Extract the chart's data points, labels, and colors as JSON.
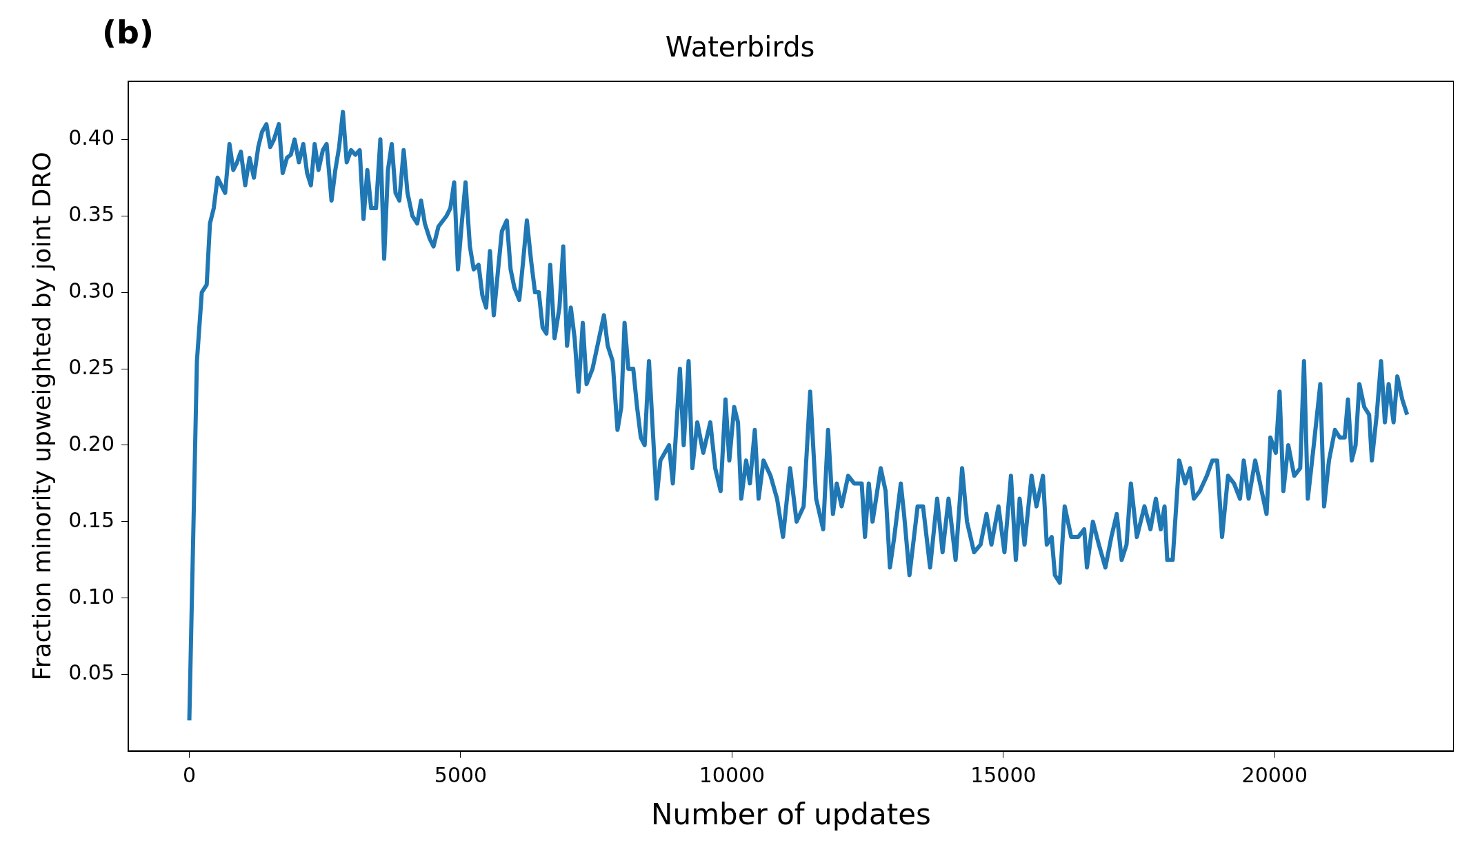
{
  "chart_data": {
    "type": "line",
    "title": "Waterbirds",
    "xlabel": "Number of updates",
    "ylabel": "Fraction minority upweighted by joint DRO",
    "annotations": [
      "(b)"
    ],
    "x": [
      0,
      140,
      230,
      320,
      380,
      450,
      520,
      590,
      660,
      740,
      810,
      880,
      950,
      1030,
      1110,
      1190,
      1270,
      1340,
      1420,
      1490,
      1560,
      1650,
      1720,
      1800,
      1870,
      1940,
      2020,
      2100,
      2170,
      2240,
      2310,
      2380,
      2460,
      2530,
      2620,
      2690,
      2760,
      2830,
      2900,
      2980,
      3060,
      3140,
      3210,
      3280,
      3350,
      3440,
      3520,
      3590,
      3660,
      3730,
      3800,
      3870,
      3950,
      4020,
      4110,
      4200,
      4270,
      4340,
      4430,
      4500,
      4590,
      4740,
      4810,
      4880,
      4950,
      5020,
      5090,
      5170,
      5240,
      5330,
      5400,
      5470,
      5540,
      5610,
      5690,
      5760,
      5850,
      5920,
      5990,
      6080,
      6150,
      6220,
      6300,
      6370,
      6440,
      6510,
      6580,
      6650,
      6730,
      6820,
      6890,
      6960,
      7030,
      7100,
      7170,
      7250,
      7320,
      7430,
      7550,
      7640,
      7710,
      7800,
      7890,
      7960,
      8020,
      8090,
      8180,
      8250,
      8320,
      8390,
      8470,
      8610,
      8680,
      8840,
      8910,
      9040,
      9110,
      9200,
      9270,
      9360,
      9470,
      9600,
      9690,
      9790,
      9880,
      9950,
      10040,
      10110,
      10170,
      10260,
      10330,
      10420,
      10490,
      10580,
      10710,
      10830,
      10940,
      11070,
      11190,
      11320,
      11440,
      11550,
      11680,
      11770,
      11860,
      11930,
      12020,
      12140,
      12250,
      12390,
      12450,
      12520,
      12590,
      12740,
      12830,
      12910,
      12990,
      13110,
      13170,
      13270,
      13420,
      13520,
      13650,
      13780,
      13880,
      13990,
      14120,
      14240,
      14330,
      14460,
      14580,
      14690,
      14780,
      14910,
      15020,
      15140,
      15230,
      15300,
      15390,
      15520,
      15610,
      15730,
      15800,
      15890,
      15950,
      16040,
      16130,
      16250,
      16380,
      16490,
      16540,
      16650,
      16760,
      16880,
      16990,
      17090,
      17180,
      17270,
      17350,
      17460,
      17600,
      17710,
      17810,
      17900,
      17970,
      18020,
      18120,
      18240,
      18350,
      18440,
      18510,
      18620,
      18750,
      18850,
      18940,
      19030,
      19140,
      19250,
      19360,
      19430,
      19520,
      19640,
      19730,
      19850,
      19920,
      20020,
      20090,
      20160,
      20250,
      20360,
      20470,
      20540,
      20610,
      20720,
      20840,
      20910,
      21000,
      21110,
      21200,
      21290,
      21350,
      21420,
      21490,
      21560,
      21650,
      21740,
      21790,
      21880,
      21960,
      22030,
      22100,
      22190,
      22260,
      22350,
      22440
    ],
    "values": [
      0.02,
      0.255,
      0.3,
      0.305,
      0.345,
      0.355,
      0.375,
      0.37,
      0.365,
      0.397,
      0.38,
      0.385,
      0.392,
      0.37,
      0.388,
      0.375,
      0.395,
      0.405,
      0.41,
      0.395,
      0.4,
      0.41,
      0.378,
      0.388,
      0.39,
      0.4,
      0.385,
      0.397,
      0.378,
      0.37,
      0.397,
      0.38,
      0.393,
      0.397,
      0.36,
      0.38,
      0.395,
      0.418,
      0.385,
      0.393,
      0.39,
      0.393,
      0.348,
      0.38,
      0.355,
      0.355,
      0.4,
      0.322,
      0.38,
      0.397,
      0.365,
      0.36,
      0.393,
      0.365,
      0.35,
      0.345,
      0.36,
      0.345,
      0.335,
      0.33,
      0.343,
      0.35,
      0.355,
      0.372,
      0.315,
      0.345,
      0.372,
      0.33,
      0.315,
      0.318,
      0.298,
      0.29,
      0.327,
      0.285,
      0.315,
      0.34,
      0.347,
      0.315,
      0.303,
      0.295,
      0.32,
      0.347,
      0.32,
      0.3,
      0.3,
      0.277,
      0.273,
      0.318,
      0.27,
      0.29,
      0.33,
      0.265,
      0.29,
      0.27,
      0.235,
      0.28,
      0.24,
      0.25,
      0.27,
      0.285,
      0.265,
      0.255,
      0.21,
      0.225,
      0.28,
      0.25,
      0.25,
      0.225,
      0.205,
      0.2,
      0.255,
      0.165,
      0.19,
      0.2,
      0.175,
      0.25,
      0.2,
      0.255,
      0.185,
      0.215,
      0.195,
      0.215,
      0.185,
      0.17,
      0.23,
      0.19,
      0.225,
      0.215,
      0.165,
      0.19,
      0.175,
      0.21,
      0.165,
      0.19,
      0.18,
      0.165,
      0.14,
      0.185,
      0.15,
      0.16,
      0.235,
      0.165,
      0.145,
      0.21,
      0.155,
      0.175,
      0.16,
      0.18,
      0.175,
      0.175,
      0.14,
      0.175,
      0.15,
      0.185,
      0.17,
      0.12,
      0.14,
      0.175,
      0.155,
      0.115,
      0.16,
      0.16,
      0.12,
      0.165,
      0.13,
      0.165,
      0.125,
      0.185,
      0.15,
      0.13,
      0.135,
      0.155,
      0.135,
      0.16,
      0.13,
      0.18,
      0.125,
      0.165,
      0.135,
      0.18,
      0.16,
      0.18,
      0.135,
      0.14,
      0.115,
      0.11,
      0.16,
      0.14,
      0.14,
      0.145,
      0.12,
      0.15,
      0.135,
      0.12,
      0.14,
      0.155,
      0.125,
      0.135,
      0.175,
      0.14,
      0.16,
      0.145,
      0.165,
      0.145,
      0.16,
      0.125,
      0.125,
      0.19,
      0.175,
      0.185,
      0.165,
      0.17,
      0.18,
      0.19,
      0.19,
      0.14,
      0.18,
      0.175,
      0.165,
      0.19,
      0.165,
      0.19,
      0.175,
      0.155,
      0.205,
      0.195,
      0.235,
      0.17,
      0.2,
      0.18,
      0.185,
      0.255,
      0.165,
      0.2,
      0.24,
      0.16,
      0.19,
      0.21,
      0.205,
      0.205,
      0.23,
      0.19,
      0.2,
      0.24,
      0.225,
      0.22,
      0.19,
      0.22,
      0.255,
      0.215,
      0.24,
      0.215,
      0.245,
      0.23,
      0.22
    ],
    "color": "#1f77b4",
    "xlim": [
      -1125,
      23300
    ],
    "ylim": [
      0.0,
      0.438
    ],
    "xticks": [
      0,
      5000,
      10000,
      15000,
      20000
    ],
    "yticks": [
      {
        "value": 0.05,
        "label": "0.05"
      },
      {
        "value": 0.1,
        "label": "0.10"
      },
      {
        "value": 0.15,
        "label": "0.15"
      },
      {
        "value": 0.2,
        "label": "0.20"
      },
      {
        "value": 0.25,
        "label": "0.25"
      },
      {
        "value": 0.3,
        "label": "0.30"
      },
      {
        "value": 0.35,
        "label": "0.35"
      },
      {
        "value": 0.4,
        "label": "0.40"
      }
    ],
    "grid": false,
    "legend": false
  }
}
